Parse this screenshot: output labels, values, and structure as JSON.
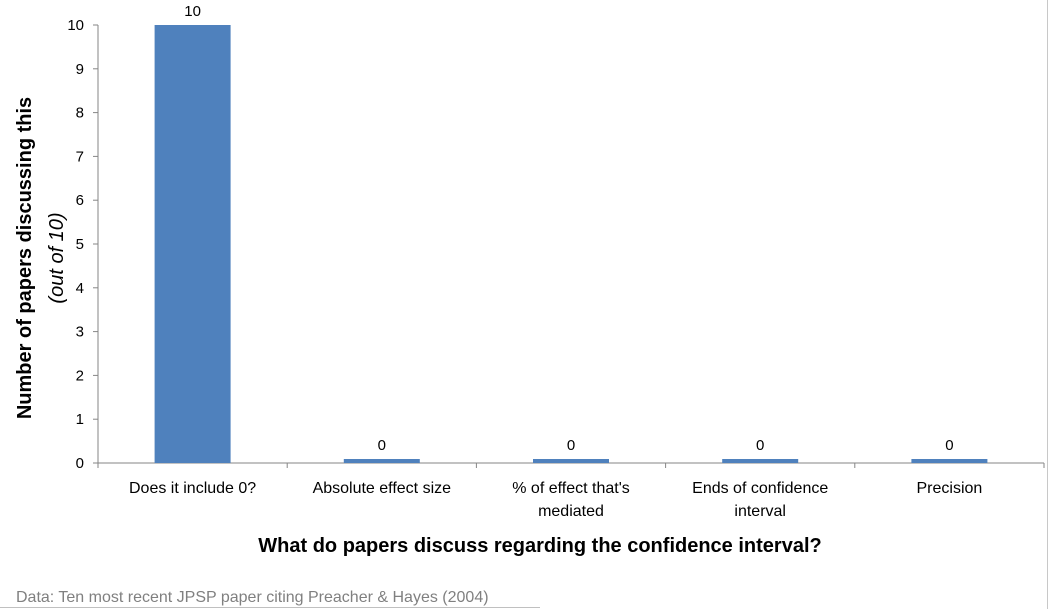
{
  "chart_data": {
    "type": "bar",
    "categories": [
      "Does it include 0?",
      "Absolute effect size",
      "% of effect that's mediated",
      "Ends of confidence interval",
      "Precision"
    ],
    "category_lines": [
      [
        "Does it include 0?"
      ],
      [
        "Absolute effect size"
      ],
      [
        "% of effect that's",
        "mediated"
      ],
      [
        "Ends of confidence",
        "interval"
      ],
      [
        "Precision"
      ]
    ],
    "values": [
      10,
      0,
      0,
      0,
      0
    ],
    "data_labels": [
      "10",
      "0",
      "0",
      "0",
      "0"
    ],
    "xlabel": "What do papers discuss regarding the confidence interval?",
    "ylabel": "Number of papers discussing this",
    "ylabel_sub": "(out of 10)",
    "ylim": [
      0,
      10
    ],
    "yticks": [
      0,
      1,
      2,
      3,
      4,
      5,
      6,
      7,
      8,
      9,
      10
    ],
    "bar_color": "#4f81bd",
    "axis_color": "#868686",
    "grid": false,
    "legend": "none"
  },
  "source_note": "Data: Ten most recent JPSP paper citing Preacher & Hayes (2004)"
}
